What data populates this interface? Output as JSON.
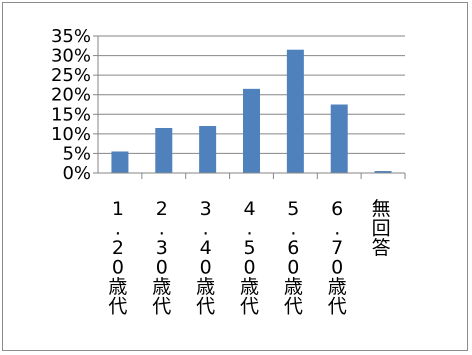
{
  "chart_data": {
    "type": "bar",
    "title": "",
    "xlabel": "",
    "ylabel": "",
    "categories": [
      "1.20歳代",
      "2.30歳代",
      "3.40歳代",
      "4.50歳代",
      "5.60歳代",
      "6.70歳代",
      "無回答"
    ],
    "category_label_lines": [
      [
        "1",
        ".",
        "2",
        "0",
        "歳",
        "代"
      ],
      [
        "2",
        ".",
        "3",
        "0",
        "歳",
        "代"
      ],
      [
        "3",
        ".",
        "4",
        "0",
        "歳",
        "代"
      ],
      [
        "4",
        ".",
        "5",
        "0",
        "歳",
        "代"
      ],
      [
        "5",
        ".",
        "6",
        "0",
        "歳",
        "代"
      ],
      [
        "6",
        ".",
        "7",
        "0",
        "歳",
        "代"
      ],
      [
        "無",
        "回",
        "答"
      ]
    ],
    "values": [
      5.5,
      11.5,
      12.0,
      21.5,
      31.5,
      17.5,
      0.5
    ],
    "ylim": [
      0,
      35
    ],
    "y_ticks": [
      "0%",
      "5%",
      "10%",
      "15%",
      "20%",
      "25%",
      "30%",
      "35%"
    ],
    "grid": true,
    "legend": "none",
    "bar_color": "#4f81bd"
  }
}
